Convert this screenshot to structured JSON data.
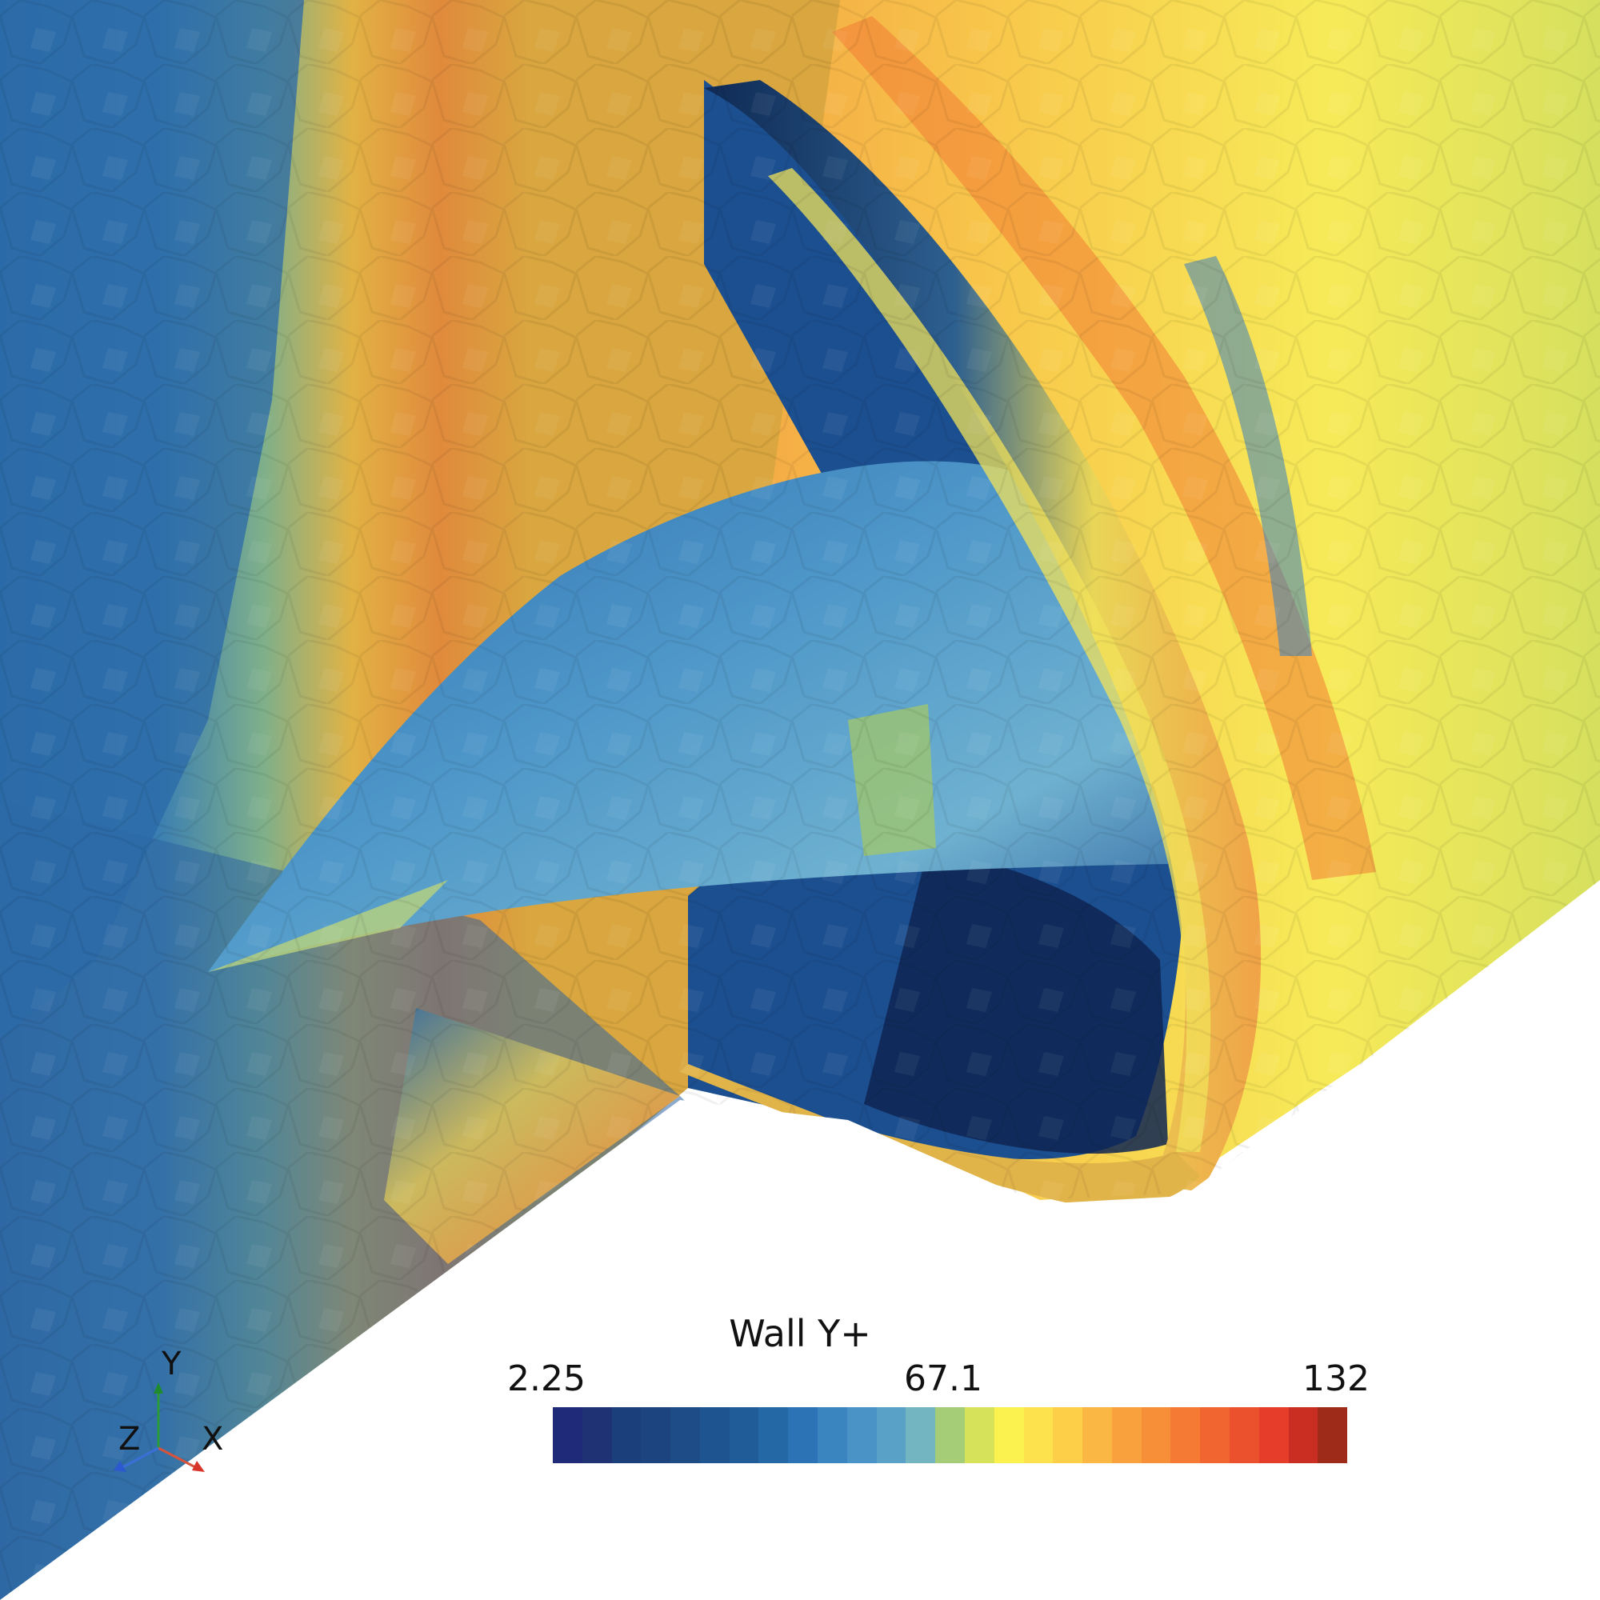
{
  "legend": {
    "title": "Wall Y+",
    "ticks": [
      "2.25",
      "67.1",
      "132"
    ],
    "range": [
      2.25,
      132
    ],
    "colors": [
      "#1f2a78",
      "#1e3274",
      "#1b3f7a",
      "#1c4580",
      "#1d4c86",
      "#1e5590",
      "#205d98",
      "#2468a6",
      "#2b73b4",
      "#3a84c0",
      "#4a93c6",
      "#5aa1c8",
      "#74b5c2",
      "#a5cd78",
      "#d6e35a",
      "#fbf250",
      "#fde24e",
      "#fdcf48",
      "#fbb743",
      "#f9a23d",
      "#f78e38",
      "#f57a34",
      "#f16531",
      "#ec512d",
      "#e63d2a",
      "#ca2d22",
      "#9e2a1a"
    ]
  },
  "axes": {
    "x": "X",
    "y": "Y",
    "z": "Z"
  },
  "surface": {
    "field": "wall-y-plus"
  }
}
